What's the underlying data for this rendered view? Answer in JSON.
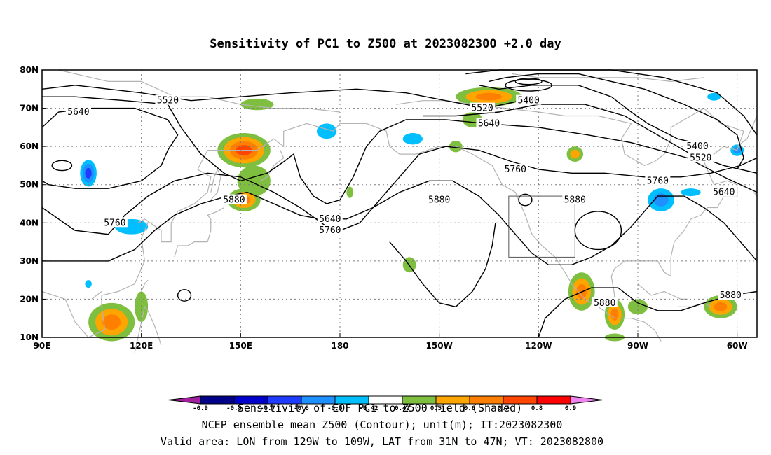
{
  "title": "Sensitivity of PC1 to Z500 at 2023082300 +2.0 day",
  "axes": {
    "lon_labels": [
      "90E",
      "120E",
      "150E",
      "180",
      "150W",
      "120W",
      "90W",
      "60W"
    ],
    "lat_labels": [
      "10N",
      "20N",
      "30N",
      "40N",
      "50N",
      "60N",
      "70N",
      "80N"
    ],
    "lon_range": [
      90,
      306
    ],
    "lat_range": [
      10,
      80
    ]
  },
  "contours": {
    "labels": [
      {
        "text": "5520",
        "lon": 128,
        "lat": 72
      },
      {
        "text": "5640",
        "lon": 101,
        "lat": 69
      },
      {
        "text": "5520",
        "lon": 223,
        "lat": 70
      },
      {
        "text": "5400",
        "lon": 237,
        "lat": 72
      },
      {
        "text": "5640",
        "lon": 225,
        "lat": 66
      },
      {
        "text": "5400",
        "lon": 288,
        "lat": 60
      },
      {
        "text": "5520",
        "lon": 289,
        "lat": 57
      },
      {
        "text": "5760",
        "lon": 233,
        "lat": 54
      },
      {
        "text": "5760",
        "lon": 276,
        "lat": 51
      },
      {
        "text": "5640",
        "lon": 296,
        "lat": 48
      },
      {
        "text": "5880",
        "lon": 148,
        "lat": 46
      },
      {
        "text": "5880",
        "lon": 210,
        "lat": 46
      },
      {
        "text": "5880",
        "lon": 251,
        "lat": 46
      },
      {
        "text": "5640",
        "lon": 177,
        "lat": 41
      },
      {
        "text": "5760",
        "lon": 112,
        "lat": 40
      },
      {
        "text": "5760",
        "lon": 177,
        "lat": 38
      },
      {
        "text": "5880",
        "lon": 260,
        "lat": 19
      },
      {
        "text": "5880",
        "lon": 298,
        "lat": 21
      }
    ]
  },
  "colorbar": {
    "ticks": [
      "-0.9",
      "-0.8",
      "-0.7",
      "-0.6",
      "-0.5",
      "-0.42",
      "0.42",
      "0.5",
      "0.6",
      "0.7",
      "0.8",
      "0.9"
    ],
    "colors": [
      "#a020a0",
      "#00008b",
      "#0000cd",
      "#1e3cff",
      "#1e90ff",
      "#00bfff",
      "#ffffff",
      "#7fbf3f",
      "#ffa500",
      "#ff7f00",
      "#ff4500",
      "#ff0000",
      "#ee82ee"
    ]
  },
  "captions": {
    "line1": "Sensitivity of EOF PC1 to Z500 field (Shaded)",
    "line2": "NCEP ensemble mean Z500 (Contour); unit(m); IT:2023082300",
    "line3": "Valid area: LON from 129W to 109W, LAT from 31N to 47N; VT: 2023082800"
  },
  "valid_box": {
    "lon_min": 231,
    "lon_max": 251,
    "lat_min": 31,
    "lat_max": 47
  },
  "colors": {
    "contour": "#000000",
    "coast": "#b4b4b4",
    "grid": "#7f7f7f",
    "box": "#555555"
  }
}
